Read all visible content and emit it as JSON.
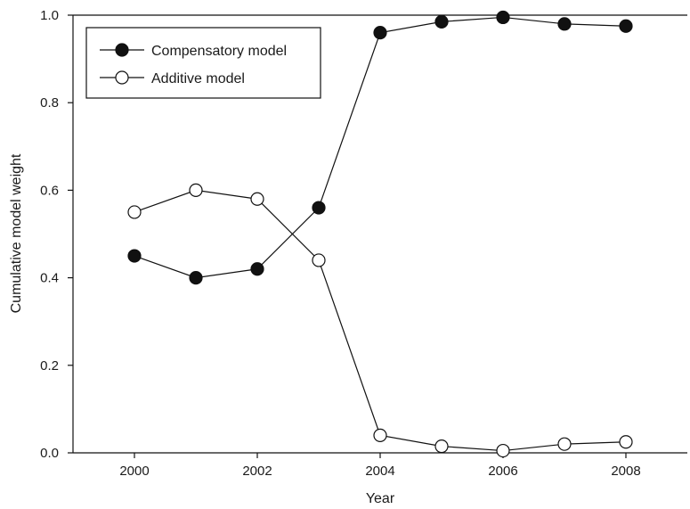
{
  "chart_data": {
    "type": "line",
    "title": "",
    "xlabel": "Year",
    "ylabel": "Cumulative model weight",
    "xlim": [
      1999,
      2009
    ],
    "ylim": [
      0,
      1
    ],
    "x_ticks": [
      2000,
      2002,
      2004,
      2006,
      2008
    ],
    "x_tick_labels": [
      "2000",
      "2002",
      "2004",
      "2006",
      "2008"
    ],
    "y_ticks": [
      0,
      0.2,
      0.4,
      0.6,
      0.8,
      1.0
    ],
    "y_tick_labels": [
      "0.0",
      "0.2",
      "0.4",
      "0.6",
      "0.8",
      "1.0"
    ],
    "grid": false,
    "legend_position": "top-left",
    "x": [
      2000,
      2001,
      2002,
      2003,
      2004,
      2005,
      2006,
      2007,
      2008
    ],
    "series": [
      {
        "name": "Compensatory model",
        "marker": "filled-circle",
        "color": "#111111",
        "values": [
          0.45,
          0.4,
          0.42,
          0.56,
          0.96,
          0.985,
          0.995,
          0.98,
          0.975
        ]
      },
      {
        "name": "Additive model",
        "marker": "open-circle",
        "color": "#111111",
        "values": [
          0.55,
          0.6,
          0.58,
          0.44,
          0.04,
          0.015,
          0.005,
          0.02,
          0.025
        ]
      }
    ]
  }
}
